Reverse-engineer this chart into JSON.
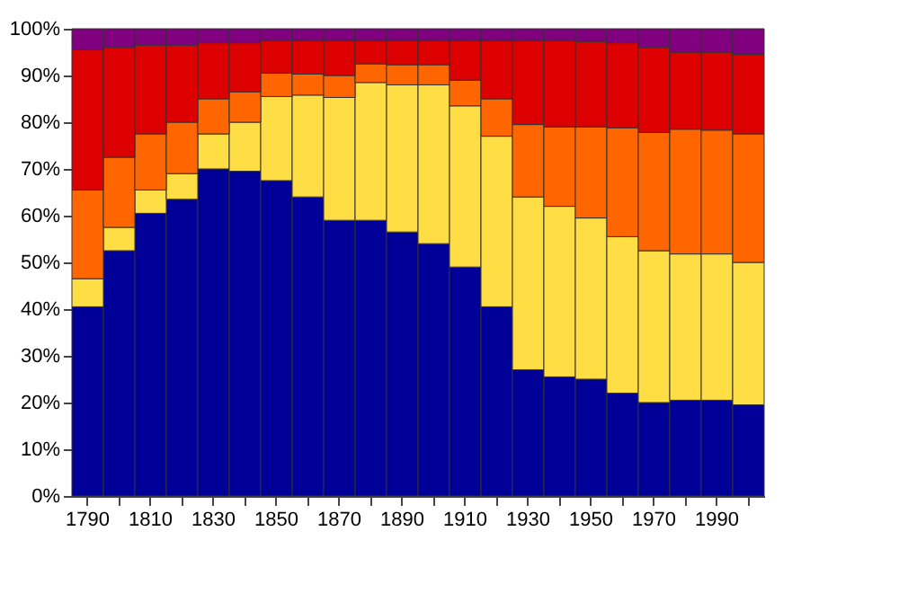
{
  "chart_data": {
    "type": "bar",
    "stacked": true,
    "legend": false,
    "grid": false,
    "categories": [
      "1790",
      null,
      "1810",
      null,
      "1830",
      null,
      "1850",
      null,
      "1870",
      null,
      "1890",
      null,
      "1910",
      null,
      "1930",
      null,
      "1950",
      null,
      "1970",
      null,
      "1990",
      null
    ],
    "series": [
      {
        "color": "#000099",
        "values": [
          40.5,
          52.5,
          60.5,
          63.5,
          70,
          69.5,
          67.5,
          64,
          59,
          59,
          56.5,
          54,
          49,
          40.5,
          27,
          25.5,
          25,
          22,
          20,
          20.5,
          20.5,
          19.5
        ]
      },
      {
        "color": "#ffdd44",
        "values": [
          6,
          5,
          5,
          5.5,
          7.5,
          10.5,
          18,
          21.8,
          26.3,
          29.5,
          31.5,
          34,
          34.5,
          36.5,
          37,
          36.5,
          34.5,
          33.5,
          32.5,
          31.3,
          31.3,
          30.5
        ]
      },
      {
        "color": "#ff6600",
        "values": [
          19,
          15,
          12,
          11,
          7.5,
          6.5,
          5,
          4.5,
          4.7,
          4,
          4.3,
          4.3,
          5.5,
          8,
          15.5,
          17,
          19.5,
          23.3,
          25.3,
          26.7,
          26.5,
          27.5
        ]
      },
      {
        "color": "#dd0000",
        "values": [
          30,
          23.5,
          19,
          16.5,
          12,
          10.5,
          7,
          7.2,
          7.5,
          5,
          5.2,
          5.2,
          8.5,
          12.5,
          18,
          18.5,
          18.3,
          18.2,
          18.2,
          16.5,
          16.7,
          17
        ]
      },
      {
        "color": "#800080",
        "values": [
          4.5,
          4,
          3.5,
          3.5,
          3,
          3,
          2.5,
          2.5,
          2.5,
          2.5,
          2.5,
          2.5,
          2.5,
          2.5,
          2.5,
          2.5,
          2.7,
          3,
          4,
          5,
          5,
          5.5
        ]
      }
    ],
    "ylim": [
      0,
      100
    ],
    "yticks": [
      {
        "value": 0,
        "label": "0%"
      },
      {
        "value": 10,
        "label": "10%"
      },
      {
        "value": 20,
        "label": "20%"
      },
      {
        "value": 30,
        "label": "30%"
      },
      {
        "value": 40,
        "label": "40%"
      },
      {
        "value": 50,
        "label": "50%"
      },
      {
        "value": 60,
        "label": "60%"
      },
      {
        "value": 70,
        "label": "70%"
      },
      {
        "value": 80,
        "label": "80%"
      },
      {
        "value": 90,
        "label": "90%"
      },
      {
        "value": 100,
        "label": "100%"
      }
    ]
  }
}
